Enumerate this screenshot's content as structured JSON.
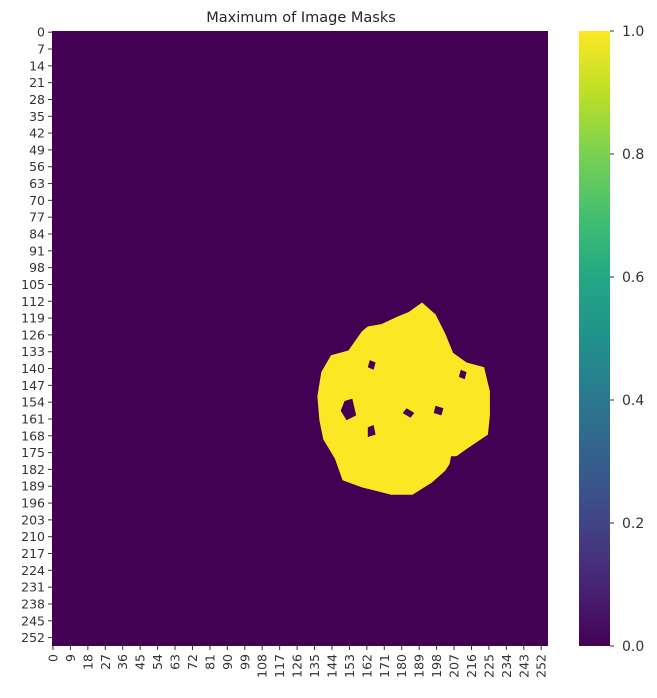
{
  "chart_data": {
    "type": "heatmap",
    "title": "Maximum of Image Masks",
    "xlabel": "",
    "ylabel": "",
    "grid_size": 256,
    "x_tick_labels": [
      "0",
      "9",
      "18",
      "27",
      "36",
      "45",
      "54",
      "63",
      "72",
      "81",
      "90",
      "99",
      "108",
      "117",
      "126",
      "135",
      "144",
      "153",
      "162",
      "171",
      "180",
      "189",
      "198",
      "207",
      "216",
      "225",
      "234",
      "243",
      "252"
    ],
    "y_tick_labels": [
      "0",
      "7",
      "14",
      "21",
      "28",
      "35",
      "42",
      "49",
      "56",
      "63",
      "70",
      "77",
      "84",
      "91",
      "98",
      "105",
      "112",
      "119",
      "126",
      "133",
      "140",
      "147",
      "154",
      "161",
      "168",
      "175",
      "182",
      "189",
      "196",
      "203",
      "210",
      "217",
      "224",
      "231",
      "238",
      "245",
      "252"
    ],
    "colorbar": {
      "min": 0.0,
      "max": 1.0,
      "tick_labels": [
        "0.0",
        "0.2",
        "0.4",
        "0.6",
        "0.8",
        "1.0"
      ],
      "colormap": "viridis"
    },
    "background_value": 0.0,
    "mask_value": 1.0,
    "mask_region_outline": [
      [
        191,
        113
      ],
      [
        198,
        118
      ],
      [
        203,
        126
      ],
      [
        207,
        134
      ],
      [
        214,
        138
      ],
      [
        223,
        140
      ],
      [
        226,
        150
      ],
      [
        226,
        160
      ],
      [
        225,
        168
      ],
      [
        214,
        174
      ],
      [
        207,
        178
      ],
      [
        203,
        183
      ],
      [
        196,
        188
      ],
      [
        186,
        193
      ],
      [
        175,
        193
      ],
      [
        160,
        190
      ],
      [
        150,
        187
      ],
      [
        146,
        178
      ],
      [
        140,
        170
      ],
      [
        138,
        162
      ],
      [
        137,
        152
      ],
      [
        139,
        142
      ],
      [
        144,
        135
      ],
      [
        153,
        133
      ],
      [
        160,
        125
      ],
      [
        163,
        123
      ],
      [
        170,
        122
      ],
      [
        178,
        119
      ],
      [
        184,
        117
      ]
    ],
    "mask_holes": [
      [
        [
          151,
          154
        ],
        [
          155,
          153
        ],
        [
          157,
          160
        ],
        [
          152,
          162
        ],
        [
          149,
          158
        ]
      ],
      [
        [
          163,
          165
        ],
        [
          166,
          164
        ],
        [
          167,
          168
        ],
        [
          163,
          169
        ]
      ],
      [
        [
          164,
          137
        ],
        [
          167,
          138
        ],
        [
          166,
          141
        ],
        [
          163,
          140
        ]
      ],
      [
        [
          183,
          157
        ],
        [
          187,
          159
        ],
        [
          185,
          161
        ],
        [
          181,
          159
        ]
      ],
      [
        [
          198,
          156
        ],
        [
          202,
          157
        ],
        [
          201,
          160
        ],
        [
          197,
          159
        ]
      ],
      [
        [
          211,
          141
        ],
        [
          214,
          142
        ],
        [
          213,
          145
        ],
        [
          210,
          144
        ]
      ],
      [
        [
          206,
          177
        ],
        [
          210,
          177
        ],
        [
          209,
          181
        ],
        [
          205,
          181
        ]
      ]
    ]
  }
}
